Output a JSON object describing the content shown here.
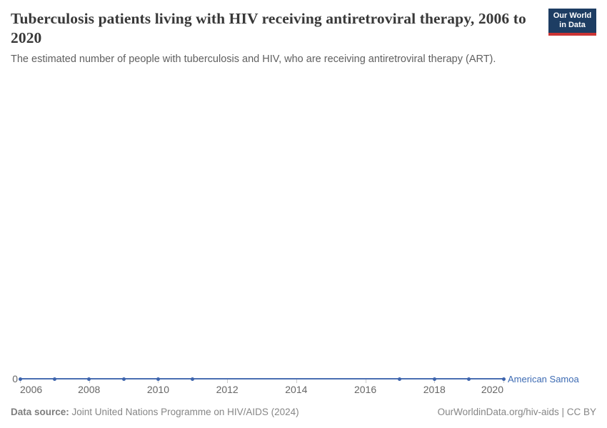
{
  "header": {
    "title": "Tuberculosis patients living with HIV receiving antiretroviral therapy, 2006 to 2020",
    "subtitle": "The estimated number of people with tuberculosis and HIV, who are receiving antiretroviral therapy (ART).",
    "logo_line1": "Our World",
    "logo_line2": "in Data",
    "logo_bg_color": "#1d3d63",
    "logo_stripe_color": "#cb3434"
  },
  "chart_data": {
    "type": "line",
    "title": "Tuberculosis patients living with HIV receiving antiretroviral therapy, 2006 to 2020",
    "xlabel": "",
    "ylabel": "",
    "xlim": [
      2006,
      2020
    ],
    "ylim": [
      0,
      0
    ],
    "grid": false,
    "legend": "inline-end-label",
    "x_ticks": [
      2006,
      2008,
      2010,
      2012,
      2014,
      2016,
      2018,
      2020
    ],
    "y_ticks": [
      0
    ],
    "y_zero_label": "0",
    "series": [
      {
        "name": "American Samoa",
        "color": "#4a6fb2",
        "marker_color": "#3d64ad",
        "x": [
          2006,
          2007,
          2008,
          2009,
          2010,
          2011,
          2017,
          2018,
          2019,
          2020
        ],
        "values": [
          0,
          0,
          0,
          0,
          0,
          0,
          0,
          0,
          0,
          0
        ]
      }
    ]
  },
  "footer": {
    "source_label": "Data source:",
    "source_text": " Joint United Nations Programme on HIV/AIDS (2024)",
    "right_text": "OurWorldinData.org/hiv-aids | CC BY"
  }
}
